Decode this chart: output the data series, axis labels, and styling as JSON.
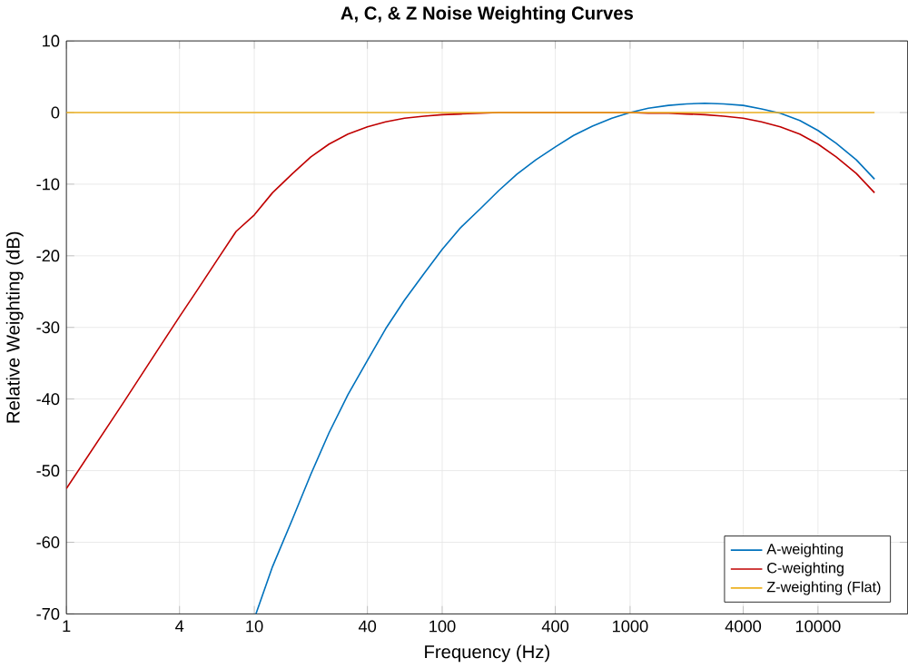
{
  "chart_data": {
    "type": "line",
    "title": "A, C, & Z Noise Weighting Curves",
    "xlabel": "Frequency (Hz)",
    "ylabel": "Relative Weighting (dB)",
    "log": "x",
    "xlim": [
      1,
      30000
    ],
    "ylim": [
      -70,
      10
    ],
    "xticks": [
      1,
      4,
      10,
      40,
      100,
      400,
      1000,
      4000,
      10000
    ],
    "yticks": [
      -70,
      -60,
      -50,
      -40,
      -30,
      -20,
      -10,
      0,
      10
    ],
    "grid": true,
    "legend": "bottom right",
    "marker": "none",
    "line_style": "solid",
    "series": [
      {
        "name": "A-weighting",
        "color": "#0072bd",
        "x": [
          10.2,
          12.5,
          16,
          20,
          25,
          31.5,
          40,
          50,
          63,
          80,
          100,
          125,
          160,
          200,
          250,
          315,
          400,
          500,
          630,
          800,
          1000,
          1250,
          1600,
          2000,
          2500,
          3150,
          4000,
          5000,
          6300,
          8000,
          10000,
          12500,
          16000,
          20000
        ],
        "values": [
          -70,
          -63.4,
          -56.7,
          -50.5,
          -44.7,
          -39.4,
          -34.6,
          -30.2,
          -26.2,
          -22.5,
          -19.1,
          -16.1,
          -13.4,
          -10.9,
          -8.6,
          -6.6,
          -4.8,
          -3.2,
          -1.9,
          -0.8,
          0,
          0.6,
          1.0,
          1.2,
          1.3,
          1.2,
          1.0,
          0.5,
          -0.1,
          -1.1,
          -2.5,
          -4.3,
          -6.6,
          -9.3
        ]
      },
      {
        "name": "C-weighting",
        "color": "#c00000",
        "x": [
          1,
          2,
          3,
          4,
          5,
          6.3,
          8,
          10,
          12.5,
          16,
          20,
          25,
          31.5,
          40,
          50,
          63,
          80,
          100,
          125,
          160,
          200,
          500,
          1000,
          1250,
          1600,
          2000,
          2500,
          3150,
          4000,
          5000,
          6300,
          8000,
          10000,
          12500,
          16000,
          20000
        ],
        "values": [
          -52.5,
          -40.6,
          -33.5,
          -28.5,
          -24.7,
          -20.7,
          -16.6,
          -14.3,
          -11.2,
          -8.5,
          -6.2,
          -4.4,
          -3.0,
          -2.0,
          -1.3,
          -0.8,
          -0.5,
          -0.3,
          -0.2,
          -0.1,
          0,
          0,
          0,
          -0.1,
          -0.1,
          -0.2,
          -0.3,
          -0.5,
          -0.8,
          -1.3,
          -2.0,
          -3.0,
          -4.4,
          -6.2,
          -8.5,
          -11.2
        ]
      },
      {
        "name": "Z-weighting (Flat)",
        "color": "#edb120",
        "x": [
          1,
          20000
        ],
        "values": [
          0,
          0
        ]
      }
    ]
  }
}
